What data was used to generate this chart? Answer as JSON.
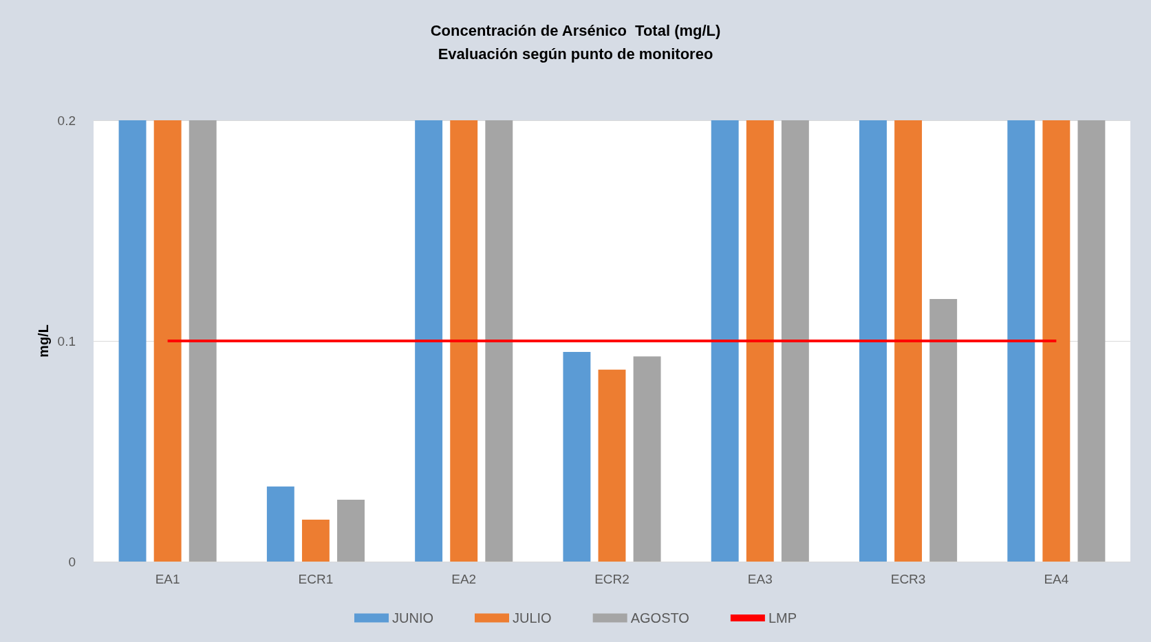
{
  "chart_data": {
    "type": "bar",
    "title": "Concentración de Arsénico  Total (mg/L)",
    "subtitle": "Evaluación según punto de monitoreo",
    "ylabel": "mg/L",
    "categories": [
      "EA1",
      "ECR1",
      "EA2",
      "ECR2",
      "EA3",
      "ECR3",
      "EA4"
    ],
    "series": [
      {
        "name": "JUNIO",
        "color": "#5b9bd5",
        "values": [
          0.2,
          0.034,
          0.2,
          0.095,
          0.2,
          0.2,
          0.2
        ]
      },
      {
        "name": "JULIO",
        "color": "#ed7d31",
        "values": [
          0.2,
          0.019,
          0.2,
          0.087,
          0.2,
          0.2,
          0.2
        ]
      },
      {
        "name": "AGOSTO",
        "color": "#a5a5a5",
        "values": [
          0.2,
          0.028,
          0.2,
          0.093,
          0.2,
          0.119,
          0.2
        ]
      },
      {
        "name": "LMP",
        "type": "line",
        "color": "#ff0000",
        "values": [
          0.1,
          0.1,
          0.1,
          0.1,
          0.1,
          0.1,
          0.1
        ]
      }
    ],
    "ylim": [
      0,
      0.2
    ],
    "yticks": [
      0,
      0.1,
      0.2
    ],
    "grid": "y",
    "legend": "bottom",
    "marker": "none",
    "line_style": "solid"
  }
}
